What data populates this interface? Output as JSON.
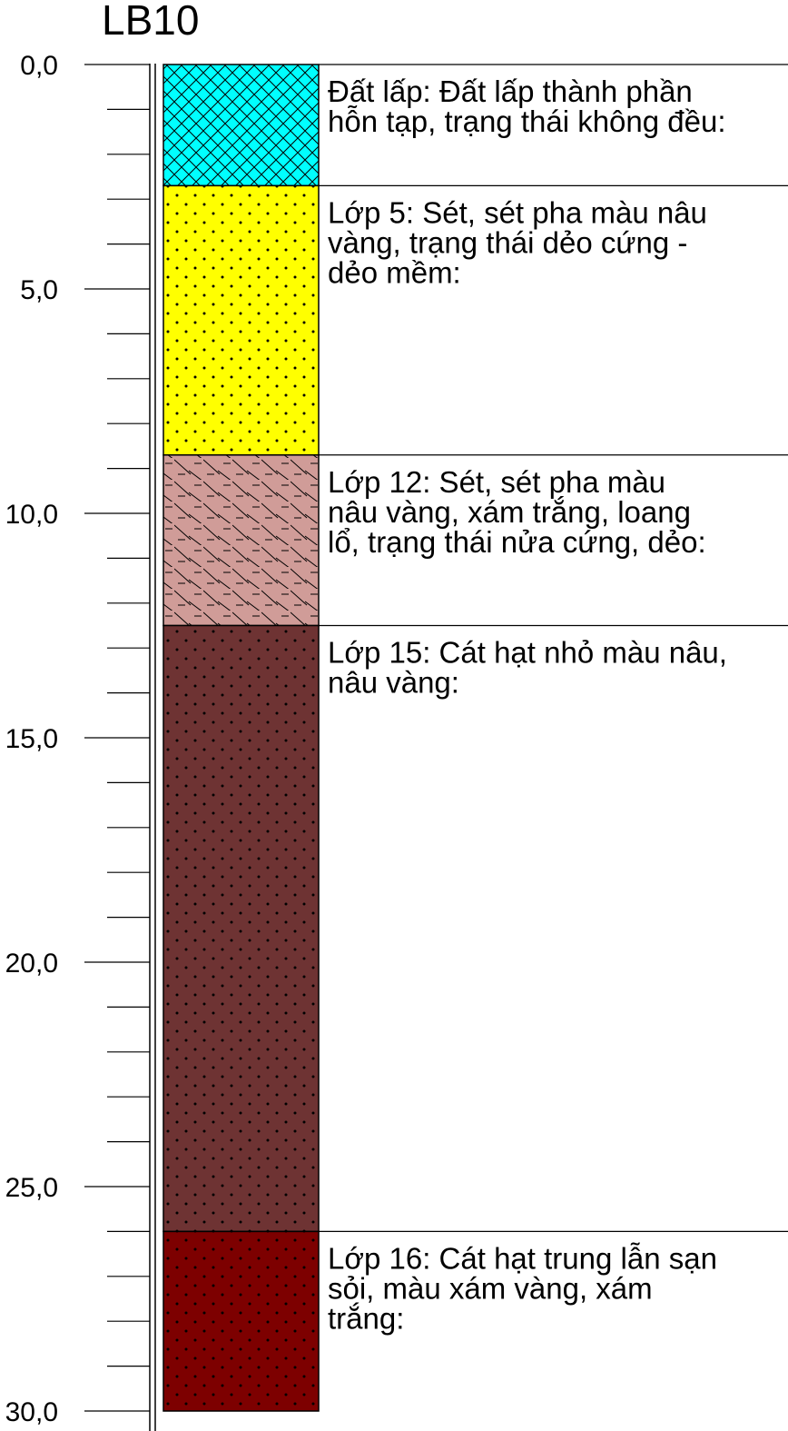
{
  "title": "LB10",
  "depth_axis": {
    "min": 0,
    "max": 30,
    "major_step": 5,
    "minor_step": 1,
    "major_labels": [
      "0,0",
      "5,0",
      "10,0",
      "15,0",
      "20,0",
      "25,0",
      "30,0"
    ]
  },
  "layers": [
    {
      "top": 0.0,
      "bottom": 2.7,
      "pattern": "crosshatch",
      "fill": "#00ffff",
      "description": [
        "Đất lấp: Đất lấp thành phần",
        "hỗn tạp, trạng thái không đều:"
      ]
    },
    {
      "top": 2.7,
      "bottom": 8.7,
      "pattern": "dots",
      "fill": "#ffff00",
      "description": [
        "Lớp 5: Sét, sét pha màu nâu",
        "vàng, trạng thái dẻo cứng -",
        "dẻo mềm:"
      ]
    },
    {
      "top": 8.7,
      "bottom": 12.5,
      "pattern": "dash-slash",
      "fill": "#d09c98",
      "description": [
        "Lớp 12: Sét, sét pha màu",
        "nâu vàng, xám trắng, loang",
        "lổ, trạng thái nửa cứng, dẻo:"
      ]
    },
    {
      "top": 12.5,
      "bottom": 26.0,
      "pattern": "dots",
      "fill": "#6e3333",
      "description": [
        "Lớp 15: Cát hạt nhỏ màu nâu,",
        "nâu vàng:"
      ]
    },
    {
      "top": 26.0,
      "bottom": 30.0,
      "pattern": "dots",
      "fill": "#7d0000",
      "description": [
        "Lớp 16: Cát hạt trung lẫn sạn",
        "sỏi, màu xám vàng, xám",
        "trắng:"
      ]
    }
  ]
}
